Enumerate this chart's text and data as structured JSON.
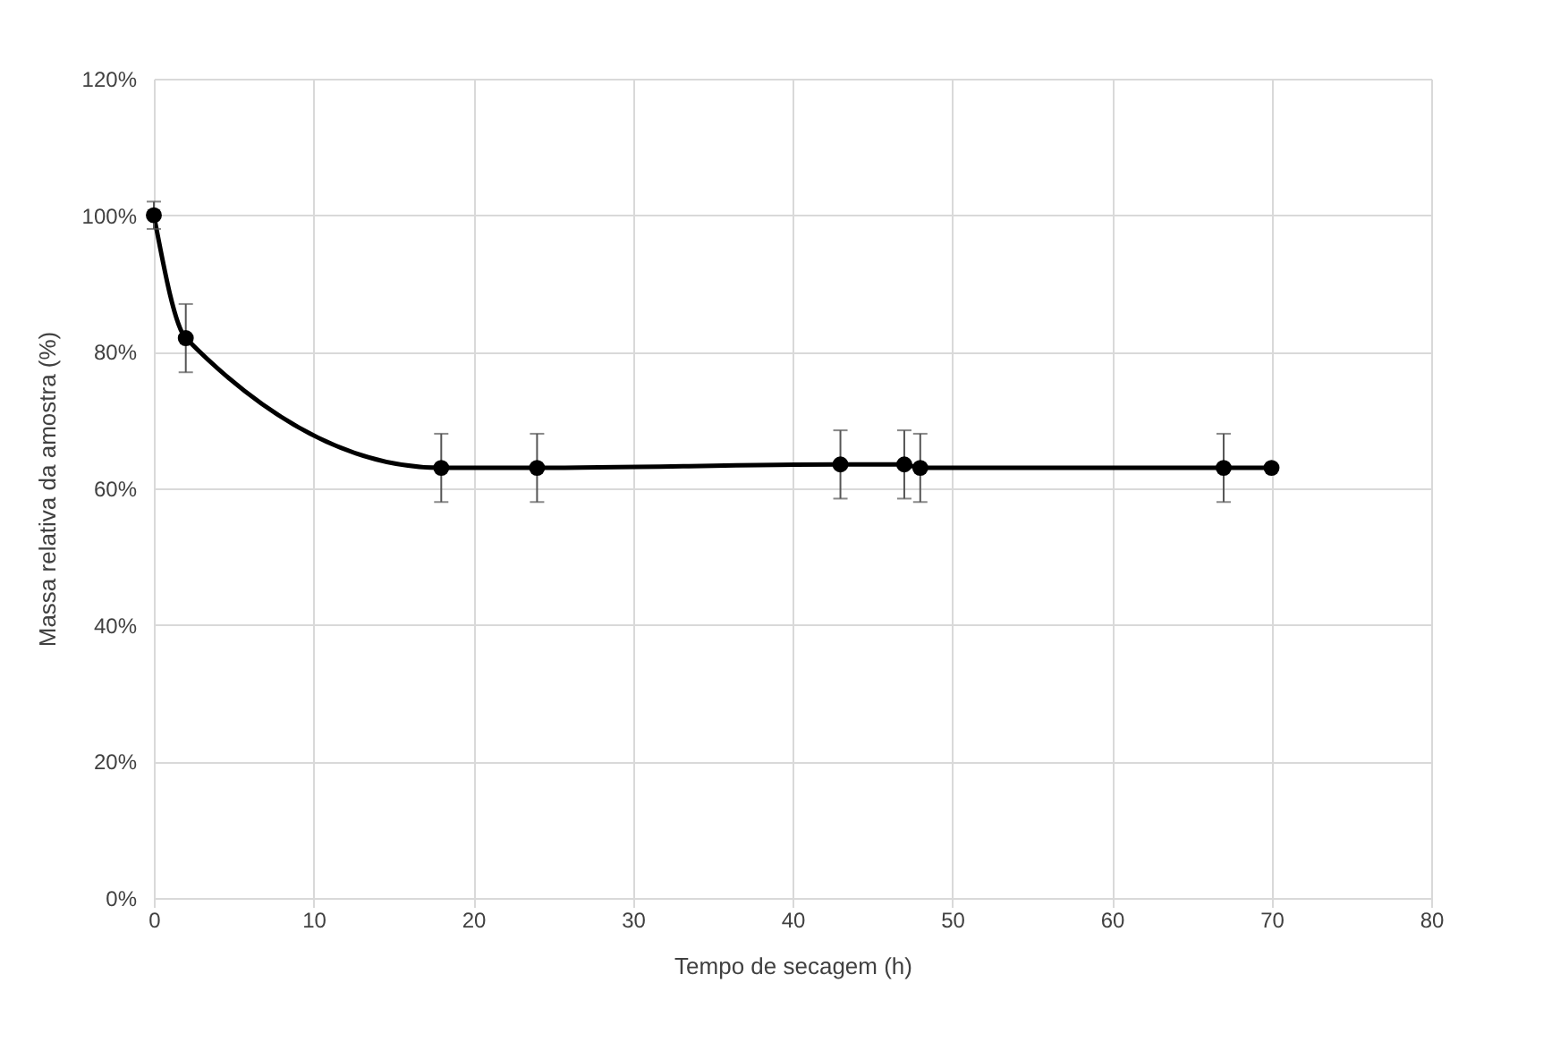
{
  "chart_data": {
    "type": "line",
    "xlabel": "Tempo  de secagem (h)",
    "ylabel": "Massa relativa da amostra (%)",
    "x": [
      0,
      2,
      18,
      24,
      43,
      47,
      48,
      67,
      70
    ],
    "series": [
      {
        "color": "#000000",
        "values": [
          100,
          82,
          63,
          63,
          63.5,
          63.5,
          63,
          63,
          63
        ],
        "errors": [
          2,
          5,
          5,
          5,
          5,
          5,
          5,
          5,
          null
        ]
      }
    ],
    "xlim": [
      0,
      80
    ],
    "xticks": [
      0,
      10,
      20,
      30,
      40,
      50,
      60,
      70,
      80
    ],
    "ylim": [
      0,
      120
    ],
    "yticks": [
      {
        "value": 0,
        "label": "0%"
      },
      {
        "value": 20,
        "label": "20%"
      },
      {
        "value": 40,
        "label": "40%"
      },
      {
        "value": 60,
        "label": "60%"
      },
      {
        "value": 80,
        "label": "80%"
      },
      {
        "value": 100,
        "label": "100%"
      },
      {
        "value": 120,
        "label": "120%"
      }
    ],
    "grid": true,
    "marker": "circle",
    "line_style": "solid"
  }
}
